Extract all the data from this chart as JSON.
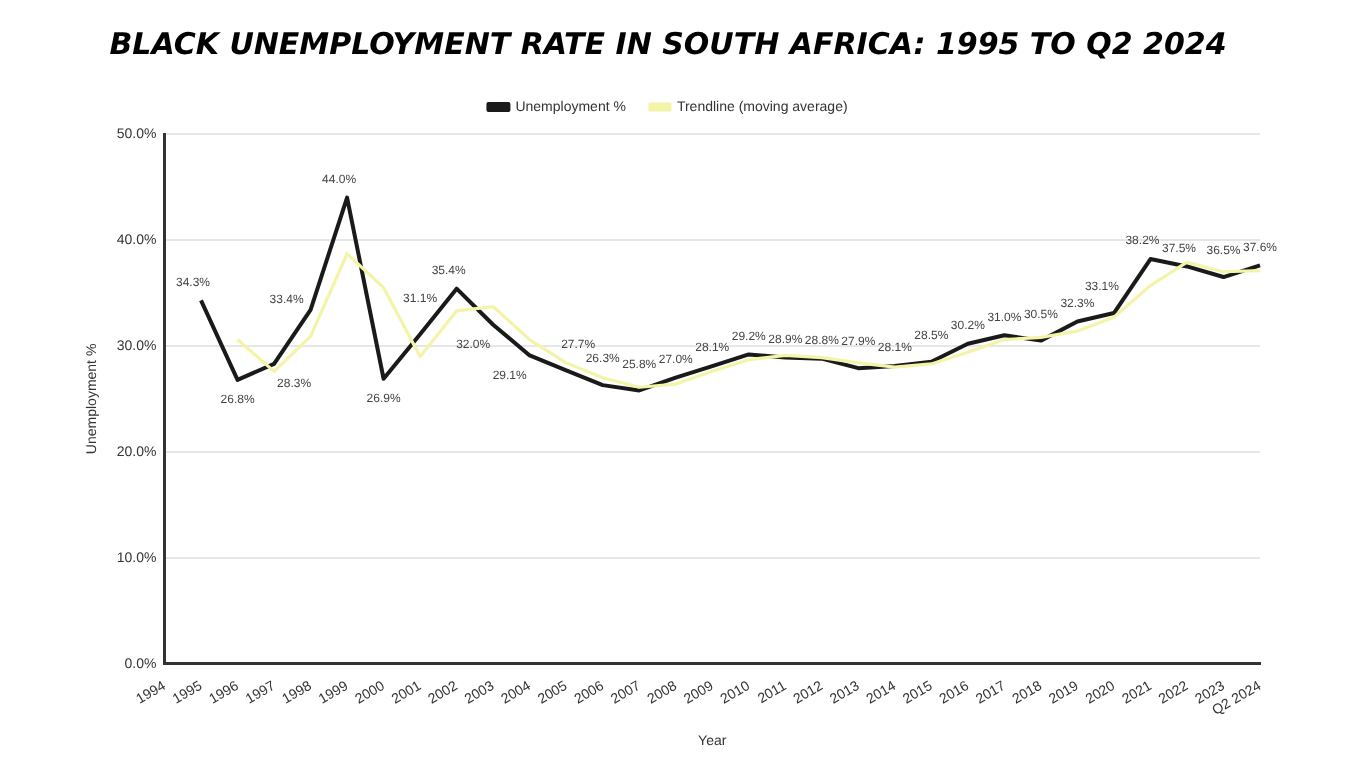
{
  "chart_data": {
    "type": "line",
    "title": "BLACK UNEMPLOYMENT RATE IN SOUTH AFRICA: 1995 TO Q2 2024",
    "xlabel": "Year",
    "ylabel": "Unemployment %",
    "categories": [
      "1994",
      "1995",
      "1996",
      "1997",
      "1998",
      "1999",
      "2000",
      "2001",
      "2002",
      "2003",
      "2004",
      "2005",
      "2006",
      "2007",
      "2008",
      "2009",
      "2010",
      "2011",
      "2012",
      "2013",
      "2014",
      "2015",
      "2016",
      "2017",
      "2018",
      "2019",
      "2020",
      "2021",
      "2022",
      "2023",
      "Q2 2024"
    ],
    "series": [
      {
        "name": "Unemployment %",
        "color": "#1a1a1a",
        "values": [
          null,
          34.3,
          26.8,
          28.3,
          33.4,
          44.0,
          26.9,
          31.1,
          35.4,
          32.0,
          29.1,
          27.7,
          26.3,
          25.8,
          27.0,
          28.1,
          29.2,
          28.9,
          28.8,
          27.9,
          28.1,
          28.5,
          30.2,
          31.0,
          30.5,
          32.3,
          33.1,
          38.2,
          37.5,
          36.5,
          37.6
        ],
        "value_labels": [
          null,
          "34.3%",
          "26.8%",
          "28.3%",
          "33.4%",
          "44.0%",
          "26.9%",
          "31.1%",
          "35.4%",
          "32.0%",
          "29.1%",
          "27.7%",
          "26.3%",
          "25.8%",
          "27.0%",
          "28.1%",
          "29.2%",
          "28.9%",
          "28.8%",
          "27.9%",
          "28.1%",
          "28.5%",
          "30.2%",
          "31.0%",
          "30.5%",
          "32.3%",
          "33.1%",
          "38.2%",
          "37.5%",
          "36.5%",
          "37.6%"
        ]
      },
      {
        "name": "Trendline (moving average)",
        "color": "#f4f4a8",
        "values": [
          null,
          null,
          30.6,
          27.6,
          30.9,
          38.7,
          35.5,
          29.0,
          33.3,
          33.7,
          30.6,
          28.4,
          27.0,
          26.1,
          26.4,
          27.6,
          28.7,
          29.1,
          28.9,
          28.4,
          28.0,
          28.3,
          29.4,
          30.6,
          30.8,
          31.4,
          32.7,
          35.7,
          37.9,
          37.0,
          37.1
        ]
      }
    ],
    "ylim": [
      0,
      50
    ],
    "yticks": [
      {
        "value": 0,
        "label": "0.0%"
      },
      {
        "value": 10,
        "label": "10.0%"
      },
      {
        "value": 20,
        "label": "20.0%"
      },
      {
        "value": 30,
        "label": "30.0%"
      },
      {
        "value": 40,
        "label": "40.0%"
      },
      {
        "value": 50,
        "label": "50.0%"
      }
    ],
    "grid": "y",
    "legend": "top",
    "marker": "none",
    "line_style": "solid"
  }
}
